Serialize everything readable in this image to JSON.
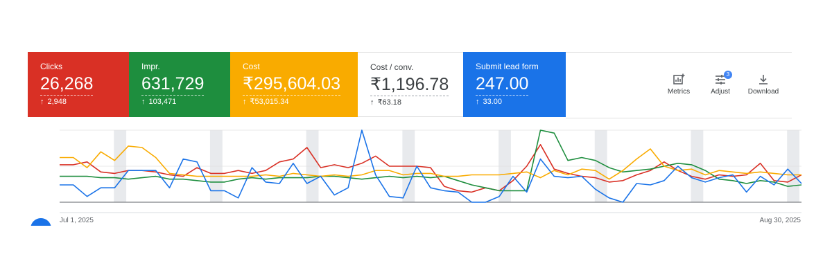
{
  "cards": [
    {
      "label": "Clicks",
      "value": "26,268",
      "delta": "2,948",
      "color": "#d93025"
    },
    {
      "label": "Impr.",
      "value": "631,729",
      "delta": "103,471",
      "color": "#1e8e3e"
    },
    {
      "label": "Cost",
      "value": "₹295,604.03",
      "delta": "₹53,015.34",
      "color": "#f9ab00"
    },
    {
      "label": "Cost / conv.",
      "value": "₹1,196.78",
      "delta": "₹63.18",
      "color": "#ffffff"
    },
    {
      "label": "Submit lead form",
      "value": "247.00",
      "delta": "33.00",
      "color": "#1a73e8"
    }
  ],
  "toolbar": {
    "metrics_label": "Metrics",
    "adjust_label": "Adjust",
    "adjust_badge": "3",
    "download_label": "Download"
  },
  "chart_data": {
    "type": "line",
    "x_start_label": "Jul 1, 2025",
    "x_end_label": "Aug 30, 2025",
    "weekend_bands": [
      4,
      11,
      18,
      25,
      32,
      39,
      46,
      53
    ],
    "grid": true,
    "series": [
      {
        "color": "#d93025",
        "values": [
          0.52,
          0.52,
          0.56,
          0.42,
          0.4,
          0.44,
          0.44,
          0.42,
          0.38,
          0.36,
          0.48,
          0.4,
          0.4,
          0.44,
          0.4,
          0.44,
          0.56,
          0.6,
          0.76,
          0.48,
          0.52,
          0.48,
          0.54,
          0.64,
          0.5,
          0.5,
          0.5,
          0.48,
          0.22,
          0.16,
          0.14,
          0.2,
          0.16,
          0.3,
          0.5,
          0.8,
          0.46,
          0.4,
          0.36,
          0.34,
          0.28,
          0.3,
          0.38,
          0.44,
          0.56,
          0.44,
          0.36,
          0.32,
          0.38,
          0.36,
          0.38,
          0.54,
          0.3,
          0.28,
          0.38
        ]
      },
      {
        "color": "#1e8e3e",
        "values": [
          0.36,
          0.36,
          0.36,
          0.34,
          0.34,
          0.32,
          0.34,
          0.36,
          0.32,
          0.32,
          0.3,
          0.28,
          0.28,
          0.32,
          0.34,
          0.32,
          0.34,
          0.34,
          0.34,
          0.36,
          0.36,
          0.34,
          0.32,
          0.34,
          0.36,
          0.34,
          0.36,
          0.34,
          0.36,
          0.3,
          0.24,
          0.2,
          0.16,
          0.16,
          0.16,
          1.0,
          0.96,
          0.58,
          0.62,
          0.58,
          0.48,
          0.42,
          0.44,
          0.46,
          0.5,
          0.54,
          0.52,
          0.44,
          0.32,
          0.3,
          0.26,
          0.3,
          0.28,
          0.22,
          0.24
        ]
      },
      {
        "color": "#f9ab00",
        "values": [
          0.62,
          0.62,
          0.48,
          0.7,
          0.58,
          0.78,
          0.76,
          0.62,
          0.4,
          0.38,
          0.36,
          0.36,
          0.36,
          0.36,
          0.36,
          0.38,
          0.36,
          0.4,
          0.38,
          0.36,
          0.38,
          0.36,
          0.38,
          0.44,
          0.44,
          0.38,
          0.4,
          0.4,
          0.36,
          0.36,
          0.38,
          0.38,
          0.38,
          0.4,
          0.42,
          0.34,
          0.44,
          0.38,
          0.46,
          0.44,
          0.32,
          0.44,
          0.6,
          0.74,
          0.5,
          0.44,
          0.46,
          0.38,
          0.44,
          0.42,
          0.4,
          0.42,
          0.4,
          0.38,
          0.38
        ]
      },
      {
        "color": "#1a73e8",
        "values": [
          0.24,
          0.24,
          0.08,
          0.2,
          0.2,
          0.44,
          0.44,
          0.44,
          0.2,
          0.6,
          0.56,
          0.16,
          0.16,
          0.06,
          0.48,
          0.28,
          0.26,
          0.54,
          0.26,
          0.36,
          0.1,
          0.2,
          1.0,
          0.38,
          0.08,
          0.06,
          0.5,
          0.2,
          0.16,
          0.14,
          0.0,
          0.0,
          0.08,
          0.36,
          0.14,
          0.6,
          0.36,
          0.34,
          0.36,
          0.18,
          0.06,
          0.0,
          0.26,
          0.24,
          0.3,
          0.5,
          0.34,
          0.28,
          0.34,
          0.38,
          0.14,
          0.36,
          0.24,
          0.46,
          0.26
        ]
      }
    ]
  }
}
